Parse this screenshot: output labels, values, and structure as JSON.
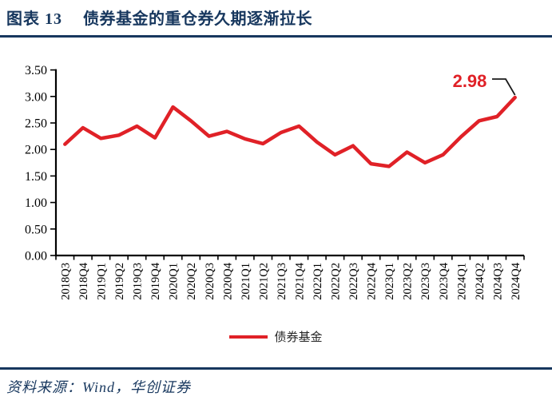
{
  "header": {
    "figure_number": "图表 13",
    "figure_title": "债券基金的重仓券久期逐渐拉长"
  },
  "legend": {
    "label": "债券基金"
  },
  "annotation": {
    "value": "2.98"
  },
  "footer": {
    "source": "资料来源：Wind，华创证券"
  },
  "colors": {
    "line_red": "#E02127",
    "header_blue": "#17375E",
    "axis_black": "#000000",
    "callout_black": "#1a1a1a"
  },
  "chart_data": {
    "type": "line",
    "title": "",
    "xlabel": "",
    "ylabel": "",
    "ylim": [
      0,
      3.5
    ],
    "ytick_step": 0.5,
    "ytick_labels": [
      "0.00",
      "0.50",
      "1.00",
      "1.50",
      "2.00",
      "2.50",
      "3.00",
      "3.50"
    ],
    "grid": false,
    "legend_position": "bottom",
    "categories": [
      "2018Q3",
      "2018Q4",
      "2019Q1",
      "2019Q2",
      "2019Q3",
      "2019Q4",
      "2020Q1",
      "2020Q2",
      "2020Q3",
      "2020Q4",
      "2021Q1",
      "2021Q2",
      "2021Q3",
      "2021Q4",
      "2022Q1",
      "2022Q2",
      "2022Q3",
      "2022Q4",
      "2023Q1",
      "2023Q2",
      "2023Q3",
      "2023Q4",
      "2024Q1",
      "2024Q2",
      "2024Q3",
      "2024Q4"
    ],
    "series": [
      {
        "name": "债券基金",
        "color": "#E02127",
        "values": [
          2.1,
          2.41,
          2.21,
          2.27,
          2.44,
          2.22,
          2.8,
          2.54,
          2.25,
          2.34,
          2.2,
          2.11,
          2.32,
          2.44,
          2.14,
          1.9,
          2.07,
          1.73,
          1.68,
          1.95,
          1.75,
          1.9,
          2.24,
          2.54,
          2.62,
          2.98
        ]
      }
    ],
    "annotation": {
      "text": "2.98",
      "target_category": "2024Q4"
    }
  }
}
